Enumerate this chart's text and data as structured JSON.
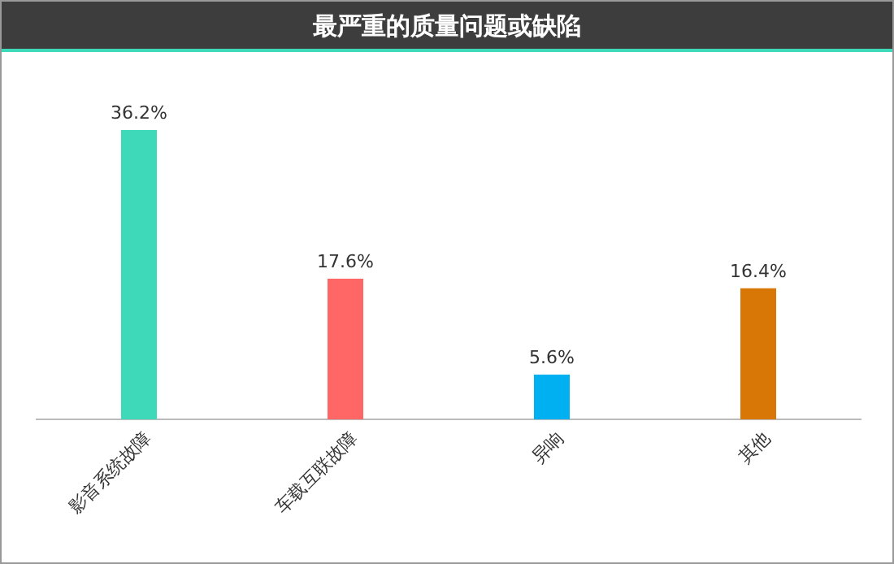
{
  "chart_data": {
    "type": "bar",
    "title": "最严重的质量问题或缺陷",
    "categories": [
      "影音系统故障",
      "车载互联故障",
      "异响",
      "其他"
    ],
    "values": [
      36.2,
      17.6,
      5.6,
      16.4
    ],
    "value_labels": [
      "36.2%",
      "17.6%",
      "5.6%",
      "16.4%"
    ],
    "colors": [
      "#3dd9b9",
      "#ff6666",
      "#00b0f0",
      "#d97706"
    ]
  }
}
